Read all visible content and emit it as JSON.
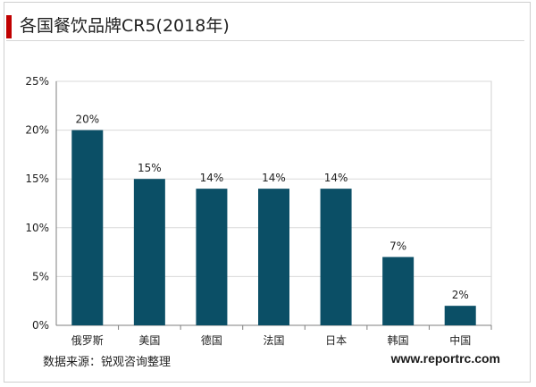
{
  "header": {
    "title": "各国餐饮品牌CR5(2018年)"
  },
  "footer": {
    "source": "数据来源：锐观咨询整理",
    "site": "www.reportrc.com"
  },
  "colors": {
    "bar": "#0b4f66",
    "accent": "#c00000",
    "grid": "#d9d9d9",
    "axis": "#7f7f7f"
  },
  "chart_data": {
    "type": "bar",
    "title": "各国餐饮品牌CR5(2018年)",
    "xlabel": "",
    "ylabel": "",
    "categories": [
      "俄罗斯",
      "美国",
      "德国",
      "法国",
      "日本",
      "韩国",
      "中国"
    ],
    "values": [
      20,
      15,
      14,
      14,
      14,
      7,
      2
    ],
    "data_labels": [
      "20%",
      "15%",
      "14%",
      "14%",
      "14%",
      "7%",
      "2%"
    ],
    "ylim": [
      0,
      25
    ],
    "yticks": [
      "0%",
      "5%",
      "10%",
      "15%",
      "20%",
      "25%"
    ],
    "grid": true,
    "legend": "none"
  }
}
